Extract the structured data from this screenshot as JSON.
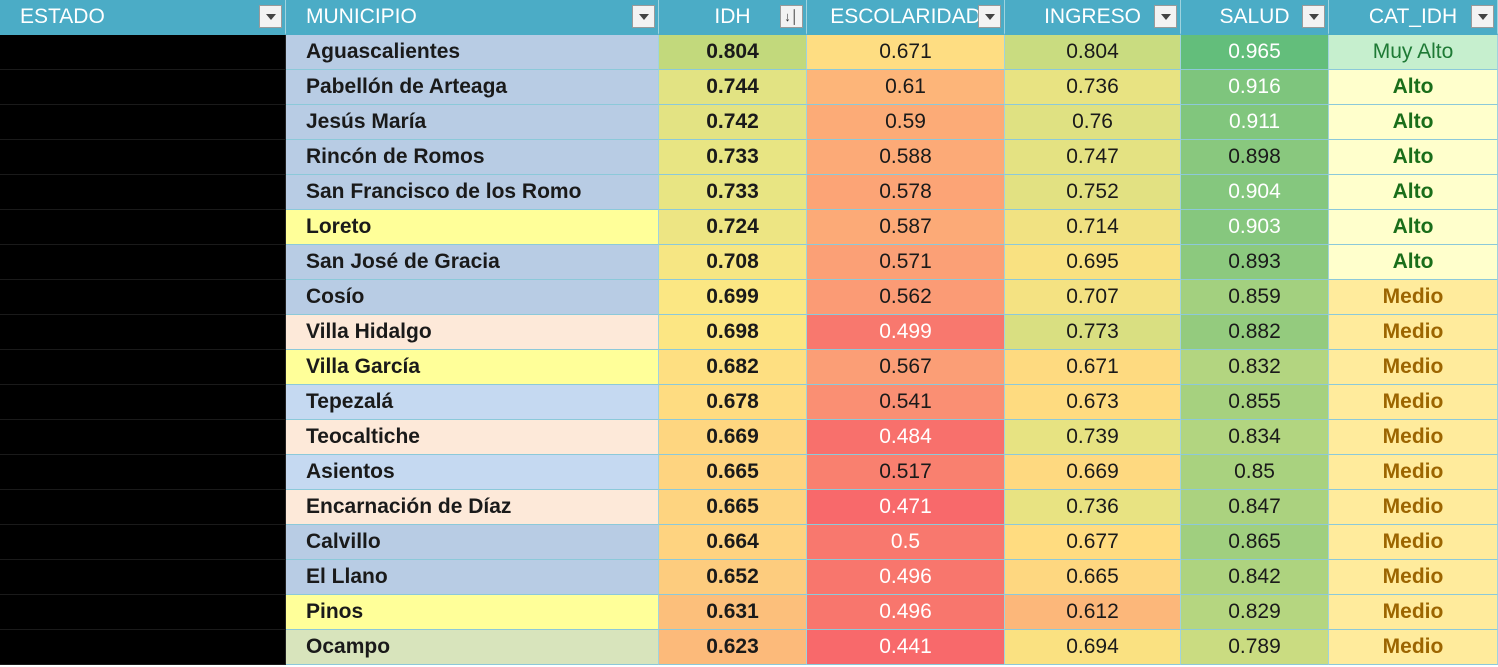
{
  "columns": [
    {
      "label": "ESTADO",
      "filter": "dropdown"
    },
    {
      "label": "MUNICIPIO",
      "filter": "dropdown"
    },
    {
      "label": "IDH",
      "filter": "sorted-descending"
    },
    {
      "label": "ESCOLARIDAD",
      "filter": "dropdown"
    },
    {
      "label": "INGRESO",
      "filter": "dropdown"
    },
    {
      "label": "SALUD",
      "filter": "dropdown"
    },
    {
      "label": "CAT_IDH",
      "filter": "dropdown"
    }
  ],
  "colors": {
    "header_bg": "#4bacc6",
    "header_text": "#ffffff",
    "estado_bg": "#000000",
    "category_styles": {
      "Muy Alto": {
        "bg": "#c6efce",
        "fg": "#1e7a35"
      },
      "Alto": {
        "bg": "#ffffcc",
        "fg": "#1a6e1a"
      },
      "Medio": {
        "bg": "#ffeb9c",
        "fg": "#9c6500"
      }
    }
  },
  "rows": [
    {
      "estado": "",
      "municipio": "Aguascalientes",
      "muni_bg": "#b8cce4",
      "idh": "0.804",
      "idh_bg": "#c2d97c",
      "esc": "0.671",
      "esc_bg": "#fedd82",
      "ing": "0.804",
      "ing_bg": "#c9dc80",
      "sal": "0.965",
      "sal_bg": "#63be7b",
      "sal_white": true,
      "cat": "Muy Alto"
    },
    {
      "estado": "",
      "municipio": "Pabellón de Arteaga",
      "muni_bg": "#b8cce4",
      "idh": "0.744",
      "idh_bg": "#e2e383",
      "esc": "0.61",
      "esc_bg": "#fdb579",
      "ing": "0.736",
      "ing_bg": "#e8e382",
      "sal": "0.916",
      "sal_bg": "#7ec57d",
      "sal_white": true,
      "cat": "Alto"
    },
    {
      "estado": "",
      "municipio": "Jesús María",
      "muni_bg": "#b8cce4",
      "idh": "0.742",
      "idh_bg": "#e3e383",
      "esc": "0.59",
      "esc_bg": "#fcab77",
      "ing": "0.76",
      "ing_bg": "#dfe182",
      "sal": "0.911",
      "sal_bg": "#81c67d",
      "sal_white": true,
      "cat": "Alto"
    },
    {
      "estado": "",
      "municipio": "Rincón de Romos",
      "muni_bg": "#b8cce4",
      "idh": "0.733",
      "idh_bg": "#e8e583",
      "esc": "0.588",
      "esc_bg": "#fcaa77",
      "ing": "0.747",
      "ing_bg": "#e4e282",
      "sal": "0.898",
      "sal_bg": "#89c87e",
      "sal_white": false,
      "cat": "Alto"
    },
    {
      "estado": "",
      "municipio": "San Francisco de los Romo",
      "muni_bg": "#b8cce4",
      "idh": "0.733",
      "idh_bg": "#e8e583",
      "esc": "0.578",
      "esc_bg": "#fca476",
      "ing": "0.752",
      "ing_bg": "#e2e182",
      "sal": "0.904",
      "sal_bg": "#85c77e",
      "sal_white": true,
      "cat": "Alto"
    },
    {
      "estado": "",
      "municipio": "Loreto",
      "muni_bg": "#ffff99",
      "idh": "0.724",
      "idh_bg": "#ede583",
      "esc": "0.587",
      "esc_bg": "#fcaa77",
      "ing": "0.714",
      "ing_bg": "#f1e282",
      "sal": "0.903",
      "sal_bg": "#86c77e",
      "sal_white": true,
      "cat": "Alto"
    },
    {
      "estado": "",
      "municipio": "San José de Gracia",
      "muni_bg": "#b8cce4",
      "idh": "0.708",
      "idh_bg": "#f6e683",
      "esc": "0.571",
      "esc_bg": "#fba076",
      "ing": "0.695",
      "ing_bg": "#f9e181",
      "sal": "0.893",
      "sal_bg": "#8cc97e",
      "sal_white": false,
      "cat": "Alto"
    },
    {
      "estado": "",
      "municipio": "Cosío",
      "muni_bg": "#b8cce4",
      "idh": "0.699",
      "idh_bg": "#fbe783",
      "esc": "0.562",
      "esc_bg": "#fb9b75",
      "ing": "0.707",
      "ing_bg": "#f4e282",
      "sal": "0.859",
      "sal_bg": "#a3d07f",
      "sal_white": false,
      "cat": "Medio"
    },
    {
      "estado": "",
      "municipio": "Villa Hidalgo",
      "muni_bg": "#fde9d9",
      "idh": "0.698",
      "idh_bg": "#fce683",
      "esc": "0.499",
      "esc_bg": "#f8786e",
      "ing": "0.773",
      "ing_bg": "#d9df81",
      "sal": "0.882",
      "sal_bg": "#94cb7e",
      "sal_white": false,
      "cat": "Medio"
    },
    {
      "estado": "",
      "municipio": "Villa García",
      "muni_bg": "#ffff99",
      "idh": "0.682",
      "idh_bg": "#fedf81",
      "esc": "0.567",
      "esc_bg": "#fb9e76",
      "ing": "0.671",
      "ing_bg": "#feda80",
      "sal": "0.832",
      "sal_bg": "#b3d580",
      "sal_white": false,
      "cat": "Medio"
    },
    {
      "estado": "",
      "municipio": "Tepezalá",
      "muni_bg": "#c5d9f1",
      "idh": "0.678",
      "idh_bg": "#fedc81",
      "esc": "0.541",
      "esc_bg": "#fa8f73",
      "ing": "0.673",
      "ing_bg": "#fedb80",
      "sal": "0.855",
      "sal_bg": "#a6d17f",
      "sal_white": false,
      "cat": "Medio"
    },
    {
      "estado": "",
      "municipio": "Teocaltiche",
      "muni_bg": "#fde9d9",
      "idh": "0.669",
      "idh_bg": "#fed680",
      "esc": "0.484",
      "esc_bg": "#f8706c",
      "ing": "0.739",
      "ing_bg": "#e7e382",
      "sal": "0.834",
      "sal_bg": "#b2d580",
      "sal_white": false,
      "cat": "Medio"
    },
    {
      "estado": "",
      "municipio": "Asientos",
      "muni_bg": "#c5d9f1",
      "idh": "0.665",
      "idh_bg": "#fed480",
      "esc": "0.517",
      "esc_bg": "#f9806f",
      "ing": "0.669",
      "ing_bg": "#fed980",
      "sal": "0.85",
      "sal_bg": "#a9d27f",
      "sal_white": false,
      "cat": "Medio"
    },
    {
      "estado": "",
      "municipio": "Encarnación de Díaz",
      "muni_bg": "#fde9d9",
      "idh": "0.665",
      "idh_bg": "#fed480",
      "esc": "0.471",
      "esc_bg": "#f8696b",
      "ing": "0.736",
      "ing_bg": "#e8e382",
      "sal": "0.847",
      "sal_bg": "#abd27f",
      "sal_white": false,
      "cat": "Medio"
    },
    {
      "estado": "",
      "municipio": "Calvillo",
      "muni_bg": "#b8cce4",
      "idh": "0.664",
      "idh_bg": "#fed380",
      "esc": "0.5",
      "esc_bg": "#f8786e",
      "ing": "0.677",
      "ing_bg": "#ffdc80",
      "sal": "0.865",
      "sal_bg": "#a0cf7f",
      "sal_white": false,
      "cat": "Medio"
    },
    {
      "estado": "",
      "municipio": "El Llano",
      "muni_bg": "#b8cce4",
      "idh": "0.652",
      "idh_bg": "#fdcc7e",
      "esc": "0.496",
      "esc_bg": "#f8766d",
      "ing": "0.665",
      "ing_bg": "#fed780",
      "sal": "0.842",
      "sal_bg": "#aed37f",
      "sal_white": false,
      "cat": "Medio"
    },
    {
      "estado": "",
      "municipio": "Pinos",
      "muni_bg": "#ffff99",
      "idh": "0.631",
      "idh_bg": "#fcbf7b",
      "esc": "0.496",
      "esc_bg": "#f8766d",
      "ing": "0.612",
      "ing_bg": "#fcb77a",
      "sal": "0.829",
      "sal_bg": "#b5d680",
      "sal_white": false,
      "cat": "Medio"
    },
    {
      "estado": "",
      "municipio": "Ocampo",
      "muni_bg": "#d8e4bc",
      "idh": "0.623",
      "idh_bg": "#fcba7a",
      "esc": "0.441",
      "esc_bg": "#f8696b",
      "ing": "0.694",
      "ing_bg": "#fae181",
      "sal": "0.789",
      "sal_bg": "#cadc81",
      "sal_white": false,
      "cat": "Medio"
    }
  ]
}
